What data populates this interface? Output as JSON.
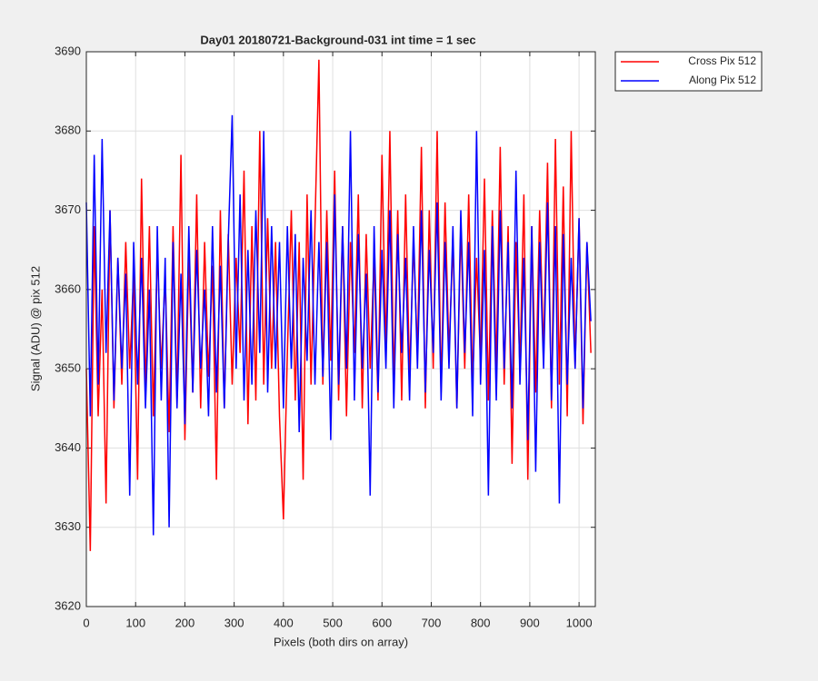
{
  "chart_data": {
    "type": "line",
    "title": "Day01 20180721-Background-031 int time = 1 sec",
    "x_label": "Pixels (both dirs on array)",
    "y_label": "Signal (ADU) @ pix 512",
    "xlim": [
      0,
      1033
    ],
    "xticks": [
      0,
      100,
      200,
      300,
      400,
      500,
      600,
      700,
      800,
      900,
      1000
    ],
    "ylim": [
      3620,
      3690
    ],
    "yticks": [
      3620,
      3630,
      3640,
      3650,
      3660,
      3670,
      3680,
      3690
    ],
    "grid": true,
    "legend": "outside-upper-right",
    "x": [
      0,
      8,
      16,
      24,
      32,
      40,
      48,
      56,
      64,
      72,
      80,
      88,
      96,
      104,
      112,
      120,
      128,
      136,
      144,
      152,
      160,
      168,
      176,
      184,
      192,
      200,
      208,
      216,
      224,
      232,
      240,
      248,
      256,
      264,
      272,
      280,
      288,
      296,
      304,
      312,
      320,
      328,
      336,
      344,
      352,
      360,
      368,
      376,
      384,
      392,
      400,
      408,
      416,
      424,
      432,
      440,
      448,
      456,
      464,
      472,
      480,
      488,
      496,
      504,
      512,
      520,
      528,
      536,
      544,
      552,
      560,
      568,
      576,
      584,
      592,
      600,
      608,
      616,
      624,
      632,
      640,
      648,
      656,
      664,
      672,
      680,
      688,
      696,
      704,
      712,
      720,
      728,
      736,
      744,
      752,
      760,
      768,
      776,
      784,
      792,
      800,
      808,
      816,
      824,
      832,
      840,
      848,
      856,
      864,
      872,
      880,
      888,
      896,
      904,
      912,
      920,
      928,
      936,
      944,
      952,
      960,
      968,
      976,
      984,
      992,
      1000,
      1008,
      1016,
      1024
    ],
    "series": [
      {
        "name": "Cross Pix 512",
        "color": "#ff0000",
        "values": [
          3650,
          3627,
          3668,
          3644,
          3660,
          3633,
          3670,
          3645,
          3664,
          3648,
          3666,
          3650,
          3662,
          3636,
          3674,
          3647,
          3668,
          3644,
          3665,
          3650,
          3662,
          3642,
          3668,
          3646,
          3677,
          3641,
          3664,
          3647,
          3672,
          3645,
          3666,
          3649,
          3663,
          3636,
          3670,
          3645,
          3667,
          3648,
          3664,
          3652,
          3675,
          3643,
          3668,
          3646,
          3680,
          3648,
          3669,
          3650,
          3666,
          3644,
          3631,
          3652,
          3670,
          3646,
          3666,
          3636,
          3672,
          3648,
          3668,
          3689,
          3648,
          3670,
          3651,
          3675,
          3646,
          3668,
          3644,
          3666,
          3652,
          3672,
          3645,
          3667,
          3650,
          3664,
          3646,
          3677,
          3652,
          3680,
          3648,
          3670,
          3646,
          3672,
          3649,
          3666,
          3652,
          3678,
          3645,
          3670,
          3650,
          3680,
          3647,
          3671,
          3652,
          3666,
          3645,
          3668,
          3650,
          3672,
          3648,
          3664,
          3651,
          3674,
          3646,
          3670,
          3650,
          3678,
          3648,
          3668,
          3638,
          3666,
          3650,
          3672,
          3636,
          3668,
          3647,
          3670,
          3652,
          3676,
          3645,
          3679,
          3648,
          3673,
          3644,
          3680,
          3650,
          3669,
          3643,
          3666,
          3652
        ]
      },
      {
        "name": "Along Pix 512",
        "color": "#0000ff",
        "values": [
          3671,
          3644,
          3677,
          3648,
          3679,
          3652,
          3670,
          3646,
          3664,
          3650,
          3662,
          3634,
          3666,
          3648,
          3664,
          3645,
          3660,
          3629,
          3668,
          3646,
          3664,
          3630,
          3666,
          3645,
          3662,
          3643,
          3668,
          3647,
          3665,
          3650,
          3660,
          3644,
          3668,
          3647,
          3663,
          3645,
          3666,
          3682,
          3650,
          3672,
          3646,
          3665,
          3648,
          3670,
          3652,
          3680,
          3647,
          3668,
          3650,
          3666,
          3645,
          3668,
          3650,
          3667,
          3642,
          3664,
          3651,
          3670,
          3648,
          3666,
          3649,
          3666,
          3641,
          3672,
          3648,
          3668,
          3650,
          3680,
          3646,
          3667,
          3650,
          3662,
          3634,
          3668,
          3647,
          3665,
          3650,
          3670,
          3645,
          3667,
          3652,
          3664,
          3646,
          3668,
          3650,
          3670,
          3647,
          3665,
          3652,
          3671,
          3646,
          3666,
          3650,
          3668,
          3645,
          3670,
          3652,
          3666,
          3644,
          3680,
          3648,
          3665,
          3634,
          3668,
          3646,
          3670,
          3650,
          3666,
          3645,
          3675,
          3648,
          3664,
          3641,
          3668,
          3637,
          3666,
          3650,
          3671,
          3646,
          3668,
          3633,
          3667,
          3648,
          3664,
          3650,
          3669,
          3645,
          3666,
          3656
        ]
      }
    ]
  }
}
